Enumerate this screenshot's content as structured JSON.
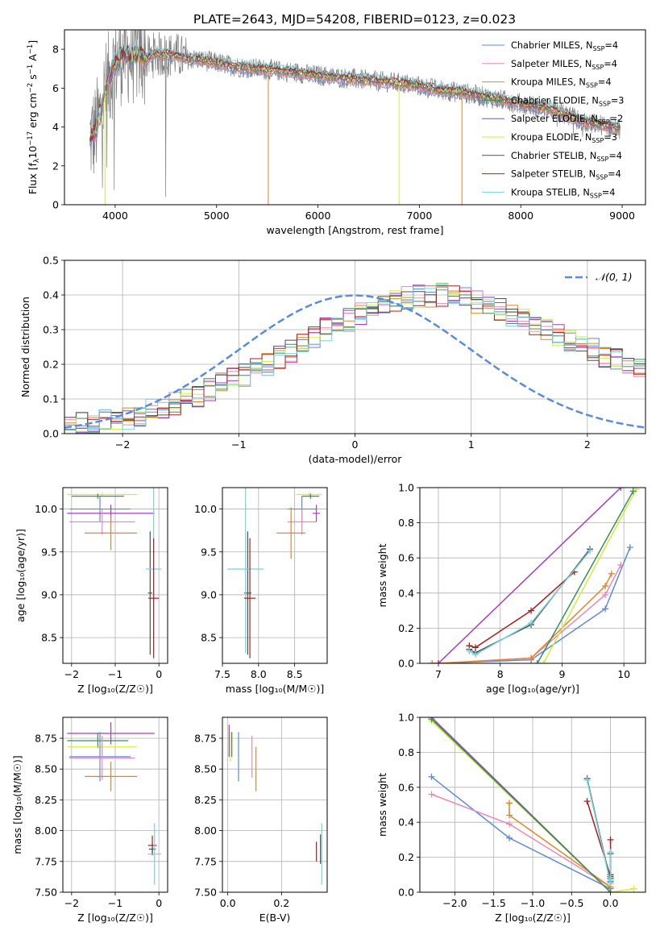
{
  "figure": {
    "title": "PLATE=2643, MJD=54208, FIBERID=0123, z=0.023"
  },
  "colors": {
    "chabrier_miles": "#5b8bd9",
    "salpeter_miles": "#e88ab8",
    "kroupa_miles": "#e3862a",
    "chabrier_elodie": "#3a8f5a",
    "salpeter_elodie": "#a63cbf",
    "kroupa_elodie": "#d6ea3c",
    "chabrier_stelib": "#505050",
    "salpeter_stelib": "#b01c1c",
    "kroupa_stelib": "#74d3dc",
    "gray_data": "#808080",
    "normal": "#5b8bd9",
    "grid": "#b0b0b0"
  },
  "chart_data": [
    {
      "id": "spectrum",
      "type": "line",
      "xlabel": "wavelength [Angstrom, rest frame]",
      "ylabel_parts": [
        "Flux [f",
        "λ",
        "10",
        "−17",
        " erg cm",
        "−2",
        " s",
        "−1",
        " A",
        "−1",
        "]"
      ],
      "xlim": [
        3500,
        9230
      ],
      "ylim": [
        0,
        9
      ],
      "xticks": [
        4000,
        5000,
        6000,
        7000,
        8000,
        9000
      ],
      "yticks": [
        0,
        2,
        4,
        6,
        8
      ],
      "continuum": {
        "x": [
          3750,
          3800,
          3850,
          3900,
          3950,
          4000,
          4050,
          4100,
          4150,
          4200,
          4250,
          4300,
          4350,
          4400,
          4450,
          4500,
          4600,
          4700,
          4800,
          4900,
          5000,
          5100,
          5200,
          5300,
          5400,
          5500,
          5600,
          5700,
          5800,
          5900,
          6000,
          6100,
          6200,
          6300,
          6400,
          6500,
          6600,
          6700,
          6800,
          6900,
          7000,
          7100,
          7200,
          7300,
          7400,
          7500,
          7600,
          7700,
          7800,
          7900,
          8000,
          8100,
          8200,
          8300,
          8400,
          8500,
          8600,
          8700,
          8800,
          8900,
          9000
        ],
        "y": [
          3.4,
          3.7,
          4.6,
          5.8,
          6.6,
          7.3,
          7.6,
          7.8,
          7.6,
          7.7,
          7.7,
          7.5,
          7.6,
          7.8,
          7.7,
          7.7,
          7.7,
          7.5,
          7.5,
          7.4,
          7.3,
          7.2,
          7.1,
          7.05,
          7.0,
          6.95,
          6.9,
          6.85,
          6.8,
          6.7,
          6.65,
          6.6,
          6.55,
          6.5,
          6.45,
          6.4,
          6.35,
          6.3,
          6.25,
          6.2,
          6.1,
          6.0,
          5.9,
          5.85,
          5.8,
          5.7,
          5.6,
          5.5,
          5.4,
          5.3,
          5.2,
          5.1,
          5.0,
          4.9,
          4.7,
          4.5,
          4.3,
          4.2,
          4.1,
          4.0,
          3.9
        ]
      },
      "dropouts": [
        {
          "x": 5510,
          "y": 0,
          "series": "kroupa_miles"
        },
        {
          "x": 6800,
          "y": 0,
          "series": "kroupa_elodie"
        },
        {
          "x": 7420,
          "y": 0,
          "series": "kroupa_miles"
        },
        {
          "x": 3900,
          "y": 0,
          "series": "kroupa_elodie"
        }
      ],
      "series": [
        {
          "key": "chabrier_miles",
          "label": "Chabrier MILES, N",
          "sub": "SSP",
          "n": "=4"
        },
        {
          "key": "salpeter_miles",
          "label": "Salpeter MILES, N",
          "sub": "SSP",
          "n": "=4"
        },
        {
          "key": "kroupa_miles",
          "label": "Kroupa MILES, N",
          "sub": "SSP",
          "n": "=4"
        },
        {
          "key": "chabrier_elodie",
          "label": "Chabrier ELODIE, N",
          "sub": "SSP",
          "n": "=3"
        },
        {
          "key": "salpeter_elodie",
          "label": "Salpeter ELODIE, N",
          "sub": "SSP",
          "n": "=2"
        },
        {
          "key": "kroupa_elodie",
          "label": "Kroupa ELODIE, N",
          "sub": "SSP",
          "n": "=3"
        },
        {
          "key": "chabrier_stelib",
          "label": "Chabrier STELIB, N",
          "sub": "SSP",
          "n": "=4"
        },
        {
          "key": "salpeter_stelib",
          "label": "Salpeter STELIB, N",
          "sub": "SSP",
          "n": "=4"
        },
        {
          "key": "kroupa_stelib",
          "label": "Kroupa STELIB, N",
          "sub": "SSP",
          "n": "=4"
        }
      ],
      "legend": "top-right"
    },
    {
      "id": "residuals",
      "type": "histogram",
      "xlabel": "(data-model)/error",
      "ylabel": "Normed distribution",
      "xlim": [
        -2.5,
        2.5
      ],
      "ylim": [
        0,
        0.5
      ],
      "xticks": [
        -2,
        -1,
        0,
        1,
        2
      ],
      "yticks": [
        0.0,
        0.1,
        0.2,
        0.3,
        0.4,
        0.5
      ],
      "bin_width": 0.1,
      "bin_start": -2.5,
      "base": [
        0.025,
        0.027,
        0.03,
        0.035,
        0.04,
        0.045,
        0.055,
        0.065,
        0.075,
        0.085,
        0.095,
        0.11,
        0.125,
        0.14,
        0.155,
        0.17,
        0.185,
        0.2,
        0.22,
        0.24,
        0.26,
        0.28,
        0.3,
        0.315,
        0.33,
        0.345,
        0.36,
        0.37,
        0.38,
        0.39,
        0.395,
        0.4,
        0.4,
        0.395,
        0.39,
        0.38,
        0.37,
        0.36,
        0.345,
        0.33,
        0.315,
        0.3,
        0.285,
        0.27,
        0.255,
        0.24,
        0.225,
        0.21,
        0.195,
        0.18
      ],
      "normal_label": "𝒩(0, 1)",
      "legend": "top-right"
    },
    {
      "id": "age_vs_Z",
      "type": "errorbar",
      "xlabel": "Z [log₁₀(Z/Z☉)]",
      "ylabel": "age  [log₁₀(age/yr)]",
      "xlim": [
        -2.2,
        0.2
      ],
      "ylim": [
        8.2,
        10.25
      ],
      "xticks": [
        -2,
        -1,
        0
      ],
      "yticks": [
        8.5,
        9.0,
        9.5,
        10.0
      ],
      "points": [
        {
          "s": "kroupa_elodie",
          "x": -1.3,
          "y": 10.17,
          "xerr": 0.8,
          "yerr": 0.02
        },
        {
          "s": "chabrier_elodie",
          "x": -1.4,
          "y": 10.15,
          "xerr": 0.6,
          "yerr": 0.03
        },
        {
          "s": "chabrier_miles",
          "x": -1.35,
          "y": 10.0,
          "xerr": 0.7,
          "yerr": 0.15
        },
        {
          "s": "salpeter_elodie",
          "x": -1.1,
          "y": 9.95,
          "xerr": 1.0,
          "yerr": 0.1
        },
        {
          "s": "salpeter_miles",
          "x": -1.3,
          "y": 9.85,
          "xerr": 0.75,
          "yerr": 0.15
        },
        {
          "s": "kroupa_miles",
          "x": -1.1,
          "y": 9.72,
          "xerr": 0.6,
          "yerr": 0.2
        },
        {
          "s": "chabrier_stelib",
          "x": -0.2,
          "y": 9.02,
          "xerr": 0.05,
          "yerr": 0.72
        },
        {
          "s": "kroupa_stelib",
          "x": -0.12,
          "y": 9.3,
          "xerr": 0.18,
          "yerr": 0.98
        },
        {
          "s": "salpeter_stelib",
          "x": -0.12,
          "y": 8.96,
          "xerr": 0.12,
          "yerr": 0.7
        }
      ]
    },
    {
      "id": "age_vs_mass",
      "type": "errorbar",
      "xlabel": "mass [log₁₀(M/M☉)]",
      "ylabel": "",
      "xlim": [
        7.5,
        8.95
      ],
      "ylim": [
        8.2,
        10.25
      ],
      "xticks": [
        7.5,
        8.0,
        8.5
      ],
      "yticks": [
        8.5,
        9.0,
        9.5,
        10.0
      ],
      "points": [
        {
          "s": "kroupa_elodie",
          "x": 8.7,
          "y": 10.17,
          "xerr": 0.18,
          "yerr": 0.02
        },
        {
          "s": "chabrier_elodie",
          "x": 8.72,
          "y": 10.15,
          "xerr": 0.12,
          "yerr": 0.03
        },
        {
          "s": "chabrier_miles",
          "x": 8.6,
          "y": 10.0,
          "xerr": 0.2,
          "yerr": 0.15
        },
        {
          "s": "salpeter_elodie",
          "x": 8.8,
          "y": 9.95,
          "xerr": 0.05,
          "yerr": 0.1
        },
        {
          "s": "salpeter_miles",
          "x": 8.6,
          "y": 9.85,
          "xerr": 0.2,
          "yerr": 0.15
        },
        {
          "s": "kroupa_miles",
          "x": 8.45,
          "y": 9.72,
          "xerr": 0.2,
          "yerr": 0.3
        },
        {
          "s": "chabrier_stelib",
          "x": 7.85,
          "y": 9.02,
          "xerr": 0.05,
          "yerr": 0.72
        },
        {
          "s": "kroupa_stelib",
          "x": 7.82,
          "y": 9.3,
          "xerr": 0.25,
          "yerr": 0.98
        },
        {
          "s": "salpeter_stelib",
          "x": 7.88,
          "y": 8.96,
          "xerr": 0.08,
          "yerr": 0.7
        }
      ]
    },
    {
      "id": "weight_vs_age",
      "type": "line",
      "xlabel": "age  [log₁₀(age/yr)]",
      "ylabel": "mass weight",
      "xlim": [
        6.7,
        10.35
      ],
      "ylim": [
        0,
        1
      ],
      "xticks": [
        7,
        8,
        9,
        10
      ],
      "yticks": [
        0.0,
        0.2,
        0.4,
        0.6,
        0.8,
        1.0
      ],
      "series": [
        {
          "s": "chabrier_miles",
          "x": [
            6.9,
            7.0,
            8.5,
            9.7,
            10.1
          ],
          "y": [
            0.0,
            0.0,
            0.02,
            0.31,
            0.66
          ]
        },
        {
          "s": "salpeter_miles",
          "x": [
            6.9,
            7.0,
            8.5,
            9.7,
            9.95
          ],
          "y": [
            0.0,
            0.0,
            0.03,
            0.39,
            0.56
          ]
        },
        {
          "s": "kroupa_miles",
          "x": [
            6.9,
            7.0,
            8.5,
            9.7,
            9.8
          ],
          "y": [
            0.0,
            0.0,
            0.03,
            0.44,
            0.51
          ]
        },
        {
          "s": "salpeter_elodie",
          "x": [
            7.0,
            9.95
          ],
          "y": [
            0.0,
            1.0
          ]
        },
        {
          "s": "kroupa_elodie",
          "x": [
            8.7,
            10.2
          ],
          "y": [
            0.0,
            0.99
          ]
        },
        {
          "s": "chabrier_elodie",
          "x": [
            8.6,
            10.15
          ],
          "y": [
            0.0,
            0.98
          ]
        },
        {
          "s": "salpeter_stelib",
          "x": [
            7.5,
            7.6,
            8.5,
            9.2
          ],
          "y": [
            0.1,
            0.09,
            0.3,
            0.52
          ]
        },
        {
          "s": "chabrier_stelib",
          "x": [
            7.5,
            7.6,
            8.5,
            9.45
          ],
          "y": [
            0.08,
            0.06,
            0.22,
            0.65
          ]
        },
        {
          "s": "kroupa_stelib",
          "x": [
            7.5,
            7.6,
            8.5,
            9.45
          ],
          "y": [
            0.07,
            0.05,
            0.23,
            0.64
          ]
        }
      ]
    },
    {
      "id": "mass_vs_Z",
      "type": "errorbar",
      "xlabel": "Z [log₁₀(Z/Z☉)]",
      "ylabel": "mass [log₁₀(M/M☉)]",
      "xlim": [
        -2.2,
        0.2
      ],
      "ylim": [
        7.5,
        8.92
      ],
      "xticks": [
        -2,
        -1,
        0
      ],
      "yticks": [
        7.5,
        7.75,
        8.0,
        8.25,
        8.5,
        8.75
      ],
      "points": [
        {
          "s": "salpeter_elodie",
          "x": -1.1,
          "y": 8.79,
          "xerr": 1.0,
          "yerr": 0.09
        },
        {
          "s": "chabrier_elodie",
          "x": -1.4,
          "y": 8.73,
          "xerr": 0.7,
          "yerr": 0.06
        },
        {
          "s": "kroupa_elodie",
          "x": -1.3,
          "y": 8.68,
          "xerr": 0.8,
          "yerr": 0.08
        },
        {
          "s": "chabrier_miles",
          "x": -1.35,
          "y": 8.6,
          "xerr": 0.7,
          "yerr": 0.2
        },
        {
          "s": "salpeter_miles",
          "x": -1.3,
          "y": 8.59,
          "xerr": 0.75,
          "yerr": 0.18
        },
        {
          "s": "kroupa_miles",
          "x": -1.1,
          "y": 8.44,
          "xerr": 0.6,
          "yerr": 0.12
        },
        {
          "s": "salpeter_stelib",
          "x": -0.15,
          "y": 7.88,
          "xerr": 0.1,
          "yerr": 0.08
        },
        {
          "s": "chabrier_stelib",
          "x": -0.15,
          "y": 7.85,
          "xerr": 0.08,
          "yerr": 0.05
        },
        {
          "s": "kroupa_stelib",
          "x": -0.1,
          "y": 7.81,
          "xerr": 0.15,
          "yerr": 0.25
        }
      ]
    },
    {
      "id": "mass_vs_ebv",
      "type": "errorbar",
      "xlabel": "E(B-V)",
      "ylabel": "",
      "xlim": [
        -0.02,
        0.37
      ],
      "ylim": [
        7.5,
        8.92
      ],
      "xticks": [
        0.0,
        0.2
      ],
      "yticks": [
        7.5,
        7.75,
        8.0,
        8.25,
        8.5,
        8.75
      ],
      "points": [
        {
          "s": "salpeter_elodie",
          "x": 0.005,
          "y": 8.73,
          "xerr": 0.0,
          "yerr": 0.13
        },
        {
          "s": "kroupa_elodie",
          "x": 0.01,
          "y": 8.68,
          "xerr": 0.0,
          "yerr": 0.12
        },
        {
          "s": "chabrier_elodie",
          "x": 0.015,
          "y": 8.7,
          "xerr": 0.0,
          "yerr": 0.1
        },
        {
          "s": "chabrier_miles",
          "x": 0.04,
          "y": 8.6,
          "xerr": 0.0,
          "yerr": 0.2
        },
        {
          "s": "salpeter_miles",
          "x": 0.09,
          "y": 8.6,
          "xerr": 0.0,
          "yerr": 0.17
        },
        {
          "s": "kroupa_miles",
          "x": 0.105,
          "y": 8.5,
          "xerr": 0.0,
          "yerr": 0.18
        },
        {
          "s": "salpeter_stelib",
          "x": 0.33,
          "y": 7.83,
          "xerr": 0.0,
          "yerr": 0.08
        },
        {
          "s": "chabrier_stelib",
          "x": 0.345,
          "y": 7.85,
          "xerr": 0.0,
          "yerr": 0.12
        },
        {
          "s": "kroupa_stelib",
          "x": 0.35,
          "y": 7.81,
          "xerr": 0.0,
          "yerr": 0.25
        }
      ]
    },
    {
      "id": "weight_vs_Z",
      "type": "line",
      "xlabel": "Z [log₁₀(Z/Z☉)]",
      "ylabel": "mass weight",
      "xlim": [
        -2.45,
        0.45
      ],
      "ylim": [
        0,
        1
      ],
      "xticks": [
        -2.0,
        -1.5,
        -1.0,
        -0.5,
        0.0
      ],
      "yticks": [
        0.0,
        0.2,
        0.4,
        0.6,
        0.8,
        1.0
      ],
      "series": [
        {
          "s": "chabrier_miles",
          "x": [
            -2.3,
            -1.3,
            0.0,
            0.0
          ],
          "y": [
            0.66,
            0.31,
            0.02,
            0.0
          ]
        },
        {
          "s": "salpeter_miles",
          "x": [
            -2.3,
            -1.3,
            0.0,
            0.0
          ],
          "y": [
            0.56,
            0.39,
            0.03,
            0.0
          ]
        },
        {
          "s": "kroupa_miles",
          "x": [
            -1.3,
            -1.3,
            0.0,
            0.0
          ],
          "y": [
            0.51,
            0.44,
            0.03,
            0.0
          ]
        },
        {
          "s": "salpeter_elodie",
          "x": [
            -2.3,
            0.0
          ],
          "y": [
            1.0,
            0.0
          ]
        },
        {
          "s": "kroupa_elodie",
          "x": [
            -2.3,
            0.0,
            0.3
          ],
          "y": [
            0.98,
            0.0,
            0.02
          ]
        },
        {
          "s": "chabrier_elodie",
          "x": [
            -2.3,
            0.0
          ],
          "y": [
            0.99,
            0.0
          ]
        },
        {
          "s": "salpeter_stelib",
          "x": [
            -0.3,
            0.0,
            0.0,
            0.0
          ],
          "y": [
            0.52,
            0.09,
            0.3,
            0.1
          ]
        },
        {
          "s": "chabrier_stelib",
          "x": [
            -0.3,
            0.0,
            0.0,
            0.0
          ],
          "y": [
            0.65,
            0.06,
            0.22,
            0.08
          ]
        },
        {
          "s": "kroupa_stelib",
          "x": [
            -0.3,
            0.0,
            0.0,
            0.0
          ],
          "y": [
            0.64,
            0.05,
            0.23,
            0.07
          ]
        }
      ]
    }
  ]
}
